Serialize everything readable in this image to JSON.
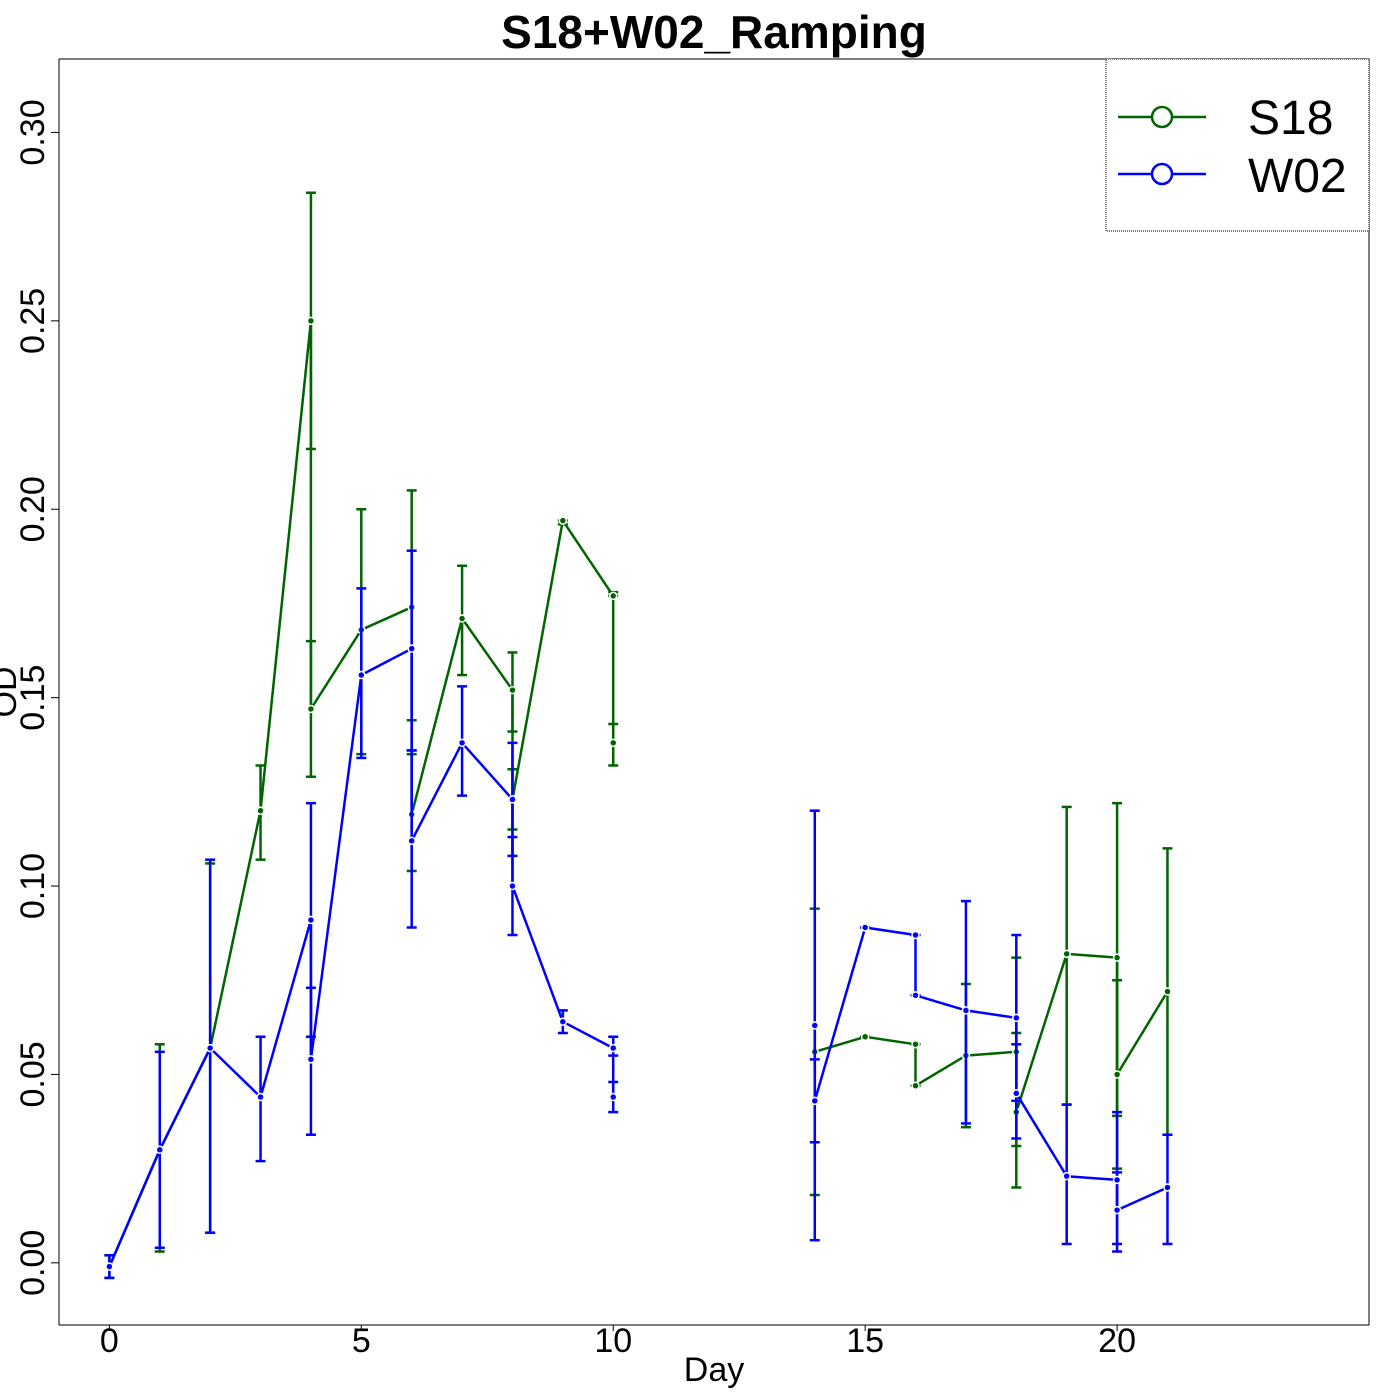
{
  "chart_data": {
    "type": "line",
    "title": "S18+W02_Ramping",
    "xlabel": "Day",
    "ylabel": "OD",
    "xlim": [
      -1,
      25
    ],
    "ylim": [
      -0.0165,
      0.3195
    ],
    "xticks": [
      0,
      5,
      10,
      15,
      20
    ],
    "xtick_labels": [
      "0",
      "5",
      "10",
      "15",
      "20"
    ],
    "yticks": [
      0.0,
      0.05,
      0.1,
      0.15,
      0.2,
      0.25,
      0.3
    ],
    "ytick_labels": [
      "0.00",
      "0.05",
      "0.10",
      "0.15",
      "0.20",
      "0.25",
      "0.30"
    ],
    "grid": false,
    "legend_position": "top-right",
    "series": [
      {
        "name": "S18",
        "color": "#006400",
        "segments": [
          [
            {
              "x": 0,
              "y": -0.001,
              "lo": -0.004,
              "hi": 0.002
            },
            {
              "x": 1,
              "y": 0.03,
              "lo": 0.003,
              "hi": 0.058
            },
            {
              "x": 2,
              "y": 0.057,
              "lo": 0.008,
              "hi": 0.106
            },
            {
              "x": 3,
              "y": 0.12,
              "lo": 0.107,
              "hi": 0.132
            },
            {
              "x": 4,
              "y": 0.25,
              "lo": 0.216,
              "hi": 0.284
            },
            {
              "x": 4,
              "y": 0.147,
              "lo": 0.129,
              "hi": 0.165
            },
            {
              "x": 5,
              "y": 0.168,
              "lo": 0.135,
              "hi": 0.2
            },
            {
              "x": 6,
              "y": 0.174,
              "lo": 0.144,
              "hi": 0.205
            },
            {
              "x": 6,
              "y": 0.119,
              "lo": 0.104,
              "hi": 0.135
            },
            {
              "x": 7,
              "y": 0.171,
              "lo": 0.156,
              "hi": 0.185
            },
            {
              "x": 8,
              "y": 0.152,
              "lo": 0.141,
              "hi": 0.162
            },
            {
              "x": 8,
              "y": 0.123,
              "lo": 0.115,
              "hi": 0.131
            },
            {
              "x": 9,
              "y": 0.197,
              "lo": 0.196,
              "hi": 0.197
            },
            {
              "x": 10,
              "y": 0.177,
              "lo": 0.177,
              "hi": 0.178
            },
            {
              "x": 10,
              "y": 0.138,
              "lo": 0.132,
              "hi": 0.143
            }
          ],
          [
            {
              "x": 14,
              "y": 0.056,
              "lo": 0.018,
              "hi": 0.094
            },
            {
              "x": 15,
              "y": 0.06,
              "lo": 0.06,
              "hi": 0.06
            },
            {
              "x": 16,
              "y": 0.058,
              "lo": 0.058,
              "hi": 0.058
            },
            {
              "x": 16,
              "y": 0.047,
              "lo": 0.047,
              "hi": 0.047
            },
            {
              "x": 17,
              "y": 0.055,
              "lo": 0.036,
              "hi": 0.074
            },
            {
              "x": 18,
              "y": 0.056,
              "lo": 0.031,
              "hi": 0.081
            },
            {
              "x": 18,
              "y": 0.04,
              "lo": 0.02,
              "hi": 0.061
            },
            {
              "x": 19,
              "y": 0.082,
              "lo": 0.042,
              "hi": 0.121
            },
            {
              "x": 20,
              "y": 0.081,
              "lo": 0.039,
              "hi": 0.122
            },
            {
              "x": 20,
              "y": 0.05,
              "lo": 0.025,
              "hi": 0.075
            },
            {
              "x": 21,
              "y": 0.072,
              "lo": 0.034,
              "hi": 0.11
            }
          ]
        ]
      },
      {
        "name": "W02",
        "color": "#0000ff",
        "segments": [
          [
            {
              "x": 0,
              "y": -0.001,
              "lo": -0.004,
              "hi": 0.002
            },
            {
              "x": 1,
              "y": 0.03,
              "lo": 0.004,
              "hi": 0.056
            },
            {
              "x": 2,
              "y": 0.057,
              "lo": 0.008,
              "hi": 0.107
            },
            {
              "x": 3,
              "y": 0.044,
              "lo": 0.027,
              "hi": 0.06
            },
            {
              "x": 4,
              "y": 0.091,
              "lo": 0.06,
              "hi": 0.122
            },
            {
              "x": 4,
              "y": 0.054,
              "lo": 0.034,
              "hi": 0.073
            },
            {
              "x": 5,
              "y": 0.156,
              "lo": 0.134,
              "hi": 0.179
            },
            {
              "x": 6,
              "y": 0.163,
              "lo": 0.136,
              "hi": 0.189
            },
            {
              "x": 6,
              "y": 0.112,
              "lo": 0.089,
              "hi": 0.136
            },
            {
              "x": 7,
              "y": 0.138,
              "lo": 0.124,
              "hi": 0.153
            },
            {
              "x": 8,
              "y": 0.123,
              "lo": 0.108,
              "hi": 0.138
            },
            {
              "x": 8,
              "y": 0.1,
              "lo": 0.087,
              "hi": 0.113
            },
            {
              "x": 9,
              "y": 0.064,
              "lo": 0.061,
              "hi": 0.067
            },
            {
              "x": 10,
              "y": 0.057,
              "lo": 0.055,
              "hi": 0.06
            },
            {
              "x": 10,
              "y": 0.044,
              "lo": 0.04,
              "hi": 0.048
            }
          ],
          [
            {
              "x": 14,
              "y": 0.063,
              "lo": 0.006,
              "hi": 0.12
            },
            {
              "x": 14,
              "y": 0.043,
              "lo": 0.032,
              "hi": 0.054
            },
            {
              "x": 15,
              "y": 0.089,
              "lo": 0.089,
              "hi": 0.089
            },
            {
              "x": 16,
              "y": 0.087,
              "lo": 0.087,
              "hi": 0.087
            },
            {
              "x": 16,
              "y": 0.071,
              "lo": 0.071,
              "hi": 0.071
            },
            {
              "x": 17,
              "y": 0.067,
              "lo": 0.037,
              "hi": 0.096
            },
            {
              "x": 18,
              "y": 0.065,
              "lo": 0.043,
              "hi": 0.087
            },
            {
              "x": 18,
              "y": 0.045,
              "lo": 0.033,
              "hi": 0.058
            },
            {
              "x": 19,
              "y": 0.023,
              "lo": 0.005,
              "hi": 0.042
            },
            {
              "x": 20,
              "y": 0.022,
              "lo": 0.005,
              "hi": 0.04
            },
            {
              "x": 20,
              "y": 0.014,
              "lo": 0.003,
              "hi": 0.024
            },
            {
              "x": 21,
              "y": 0.02,
              "lo": 0.005,
              "hi": 0.034
            }
          ]
        ]
      }
    ]
  }
}
